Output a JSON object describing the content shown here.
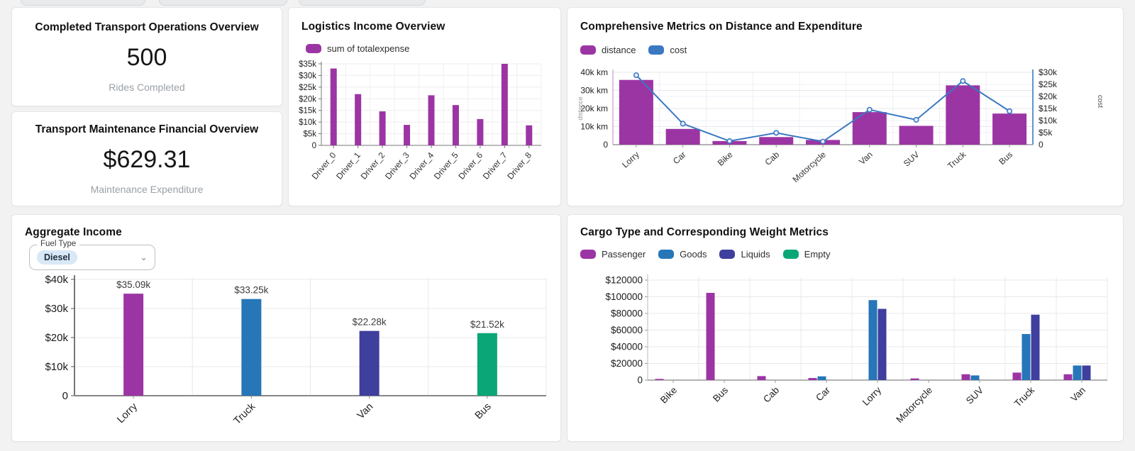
{
  "kpis": {
    "rides": {
      "title": "Completed Transport Operations Overview",
      "value": "500",
      "subtitle": "Rides Completed"
    },
    "maintenance": {
      "title": "Transport Maintenance Financial Overview",
      "value": "$629.31",
      "subtitle": "Maintenance Expenditure"
    }
  },
  "filters": {
    "fuel_type_label": "Fuel Type",
    "fuel_type_value": "Diesel"
  },
  "colors": {
    "purple": "#9c35a4",
    "blue": "#2676b8",
    "indigo": "#3f3f9e",
    "green": "#0aa678",
    "line_blue": "#3a78c2",
    "chip_bg": "#d9e8f7"
  },
  "chart_data": [
    {
      "id": "logistics-income",
      "type": "bar",
      "title": "Logistics Income Overview",
      "categories": [
        "Driver_0",
        "Driver_1",
        "Driver_2",
        "Driver_3",
        "Driver_4",
        "Driver_5",
        "Driver_6",
        "Driver_7",
        "Driver_8"
      ],
      "series": [
        {
          "name": "sum of totalexpense",
          "color": "#9c35a4",
          "values": [
            33000,
            22000,
            14600,
            8800,
            21500,
            17300,
            11300,
            35000,
            8600
          ]
        }
      ],
      "ylim": [
        0,
        35000
      ],
      "yticks": [
        [
          0,
          "0"
        ],
        [
          5000,
          "$5k"
        ],
        [
          10000,
          "$10k"
        ],
        [
          15000,
          "$15k"
        ],
        [
          20000,
          "$20k"
        ],
        [
          25000,
          "$25k"
        ],
        [
          30000,
          "$30k"
        ],
        [
          35000,
          "$35k"
        ]
      ],
      "grid": true,
      "legend_position": "top"
    },
    {
      "id": "distance-expenditure",
      "type": "bar+line",
      "title": "Comprehensive Metrics on Distance and Expenditure",
      "categories": [
        "Lorry",
        "Car",
        "Bike",
        "Cab",
        "Motorcycle",
        "Van",
        "SUV",
        "Truck",
        "Bus"
      ],
      "bar_series": {
        "name": "distance",
        "color": "#9c35a4",
        "axis": "left",
        "values": [
          35800,
          8700,
          2000,
          4200,
          2600,
          18000,
          10400,
          32800,
          17200
        ]
      },
      "line_series": {
        "name": "cost",
        "color": "#3a78c2",
        "axis": "right",
        "values": [
          28800,
          8700,
          1500,
          4900,
          1300,
          14500,
          10300,
          26400,
          13900
        ]
      },
      "left_axis": {
        "label": "distance",
        "max": 40000,
        "ticks": [
          [
            0,
            "0"
          ],
          [
            10000,
            "10k km"
          ],
          [
            20000,
            "20k km"
          ],
          [
            30000,
            "30k km"
          ],
          [
            40000,
            "40k km"
          ]
        ]
      },
      "right_axis": {
        "label": "cost",
        "max": 30000,
        "ticks": [
          [
            0,
            "0"
          ],
          [
            5000,
            "$5k"
          ],
          [
            10000,
            "$10k"
          ],
          [
            15000,
            "$15k"
          ],
          [
            20000,
            "$20k"
          ],
          [
            25000,
            "$25k"
          ],
          [
            30000,
            "$30k"
          ]
        ]
      },
      "grid": true,
      "legend_position": "top"
    },
    {
      "id": "aggregate-income",
      "type": "bar",
      "title": "Aggregate Income",
      "categories": [
        "Lorry",
        "Truck",
        "Van",
        "Bus"
      ],
      "values": [
        35090,
        33250,
        22280,
        21520
      ],
      "value_labels": [
        "$35.09k",
        "$33.25k",
        "$22.28k",
        "$21.52k"
      ],
      "bar_colors": [
        "#9c35a4",
        "#2676b8",
        "#3f3f9e",
        "#0aa678"
      ],
      "ylim": [
        0,
        40000
      ],
      "yticks": [
        [
          0,
          "0"
        ],
        [
          10000,
          "$10k"
        ],
        [
          20000,
          "$20k"
        ],
        [
          30000,
          "$30k"
        ],
        [
          40000,
          "$40k"
        ]
      ],
      "grid": true
    },
    {
      "id": "cargo-weight",
      "type": "grouped-bar",
      "title": "Cargo Type and Corresponding Weight Metrics",
      "categories": [
        "Bike",
        "Bus",
        "Cab",
        "Car",
        "Lorry",
        "Motorcycle",
        "SUV",
        "Truck",
        "Van"
      ],
      "series": [
        {
          "name": "Passenger",
          "color": "#9c35a4",
          "values": [
            1400,
            104700,
            4800,
            2500,
            0,
            2000,
            7000,
            9000,
            7000
          ]
        },
        {
          "name": "Goods",
          "color": "#2676b8",
          "values": [
            0,
            0,
            0,
            4500,
            96000,
            0,
            5600,
            55300,
            17500
          ]
        },
        {
          "name": "Liquids",
          "color": "#3f3f9e",
          "values": [
            0,
            0,
            0,
            0,
            85500,
            0,
            0,
            78500,
            17500
          ]
        },
        {
          "name": "Empty",
          "color": "#0aa678",
          "values": [
            0,
            0,
            0,
            0,
            0,
            0,
            0,
            0,
            0
          ]
        }
      ],
      "ylim": [
        0,
        120000
      ],
      "yticks": [
        [
          0,
          "0"
        ],
        [
          20000,
          "$20000"
        ],
        [
          40000,
          "$40000"
        ],
        [
          60000,
          "$60000"
        ],
        [
          80000,
          "$80000"
        ],
        [
          100000,
          "$100000"
        ],
        [
          120000,
          "$120000"
        ]
      ],
      "grid": true,
      "legend_position": "top"
    }
  ]
}
